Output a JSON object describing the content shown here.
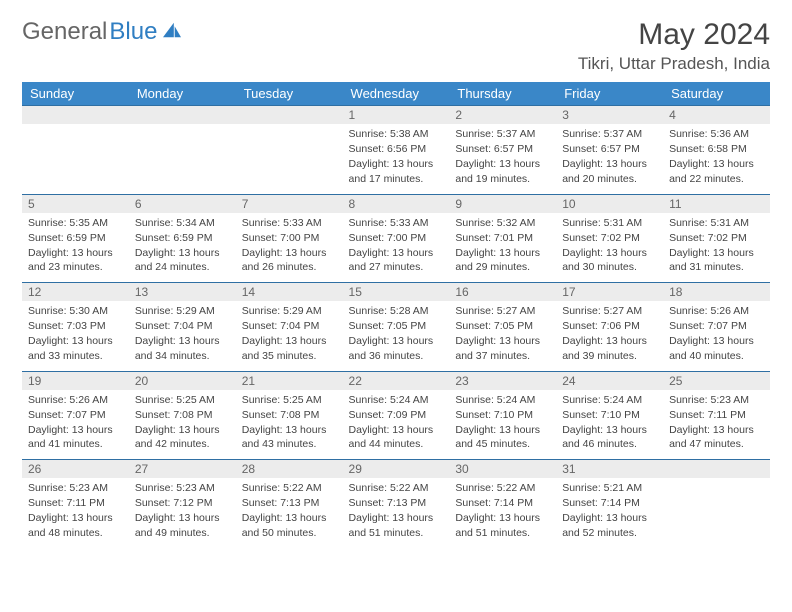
{
  "brand": {
    "gray": "General",
    "blue": "Blue"
  },
  "title": "May 2024",
  "location": "Tikri, Uttar Pradesh, India",
  "colors": {
    "header_bg": "#3a87c8",
    "header_text": "#ffffff",
    "daynum_bg": "#ececec",
    "border": "#2f6fa3",
    "text": "#444444"
  },
  "weekdays": [
    "Sunday",
    "Monday",
    "Tuesday",
    "Wednesday",
    "Thursday",
    "Friday",
    "Saturday"
  ],
  "weeks": [
    {
      "nums": [
        "",
        "",
        "",
        "1",
        "2",
        "3",
        "4"
      ],
      "cells": [
        null,
        null,
        null,
        {
          "sunrise": "5:38 AM",
          "sunset": "6:56 PM",
          "daylight": "13 hours and 17 minutes."
        },
        {
          "sunrise": "5:37 AM",
          "sunset": "6:57 PM",
          "daylight": "13 hours and 19 minutes."
        },
        {
          "sunrise": "5:37 AM",
          "sunset": "6:57 PM",
          "daylight": "13 hours and 20 minutes."
        },
        {
          "sunrise": "5:36 AM",
          "sunset": "6:58 PM",
          "daylight": "13 hours and 22 minutes."
        }
      ]
    },
    {
      "nums": [
        "5",
        "6",
        "7",
        "8",
        "9",
        "10",
        "11"
      ],
      "cells": [
        {
          "sunrise": "5:35 AM",
          "sunset": "6:59 PM",
          "daylight": "13 hours and 23 minutes."
        },
        {
          "sunrise": "5:34 AM",
          "sunset": "6:59 PM",
          "daylight": "13 hours and 24 minutes."
        },
        {
          "sunrise": "5:33 AM",
          "sunset": "7:00 PM",
          "daylight": "13 hours and 26 minutes."
        },
        {
          "sunrise": "5:33 AM",
          "sunset": "7:00 PM",
          "daylight": "13 hours and 27 minutes."
        },
        {
          "sunrise": "5:32 AM",
          "sunset": "7:01 PM",
          "daylight": "13 hours and 29 minutes."
        },
        {
          "sunrise": "5:31 AM",
          "sunset": "7:02 PM",
          "daylight": "13 hours and 30 minutes."
        },
        {
          "sunrise": "5:31 AM",
          "sunset": "7:02 PM",
          "daylight": "13 hours and 31 minutes."
        }
      ]
    },
    {
      "nums": [
        "12",
        "13",
        "14",
        "15",
        "16",
        "17",
        "18"
      ],
      "cells": [
        {
          "sunrise": "5:30 AM",
          "sunset": "7:03 PM",
          "daylight": "13 hours and 33 minutes."
        },
        {
          "sunrise": "5:29 AM",
          "sunset": "7:04 PM",
          "daylight": "13 hours and 34 minutes."
        },
        {
          "sunrise": "5:29 AM",
          "sunset": "7:04 PM",
          "daylight": "13 hours and 35 minutes."
        },
        {
          "sunrise": "5:28 AM",
          "sunset": "7:05 PM",
          "daylight": "13 hours and 36 minutes."
        },
        {
          "sunrise": "5:27 AM",
          "sunset": "7:05 PM",
          "daylight": "13 hours and 37 minutes."
        },
        {
          "sunrise": "5:27 AM",
          "sunset": "7:06 PM",
          "daylight": "13 hours and 39 minutes."
        },
        {
          "sunrise": "5:26 AM",
          "sunset": "7:07 PM",
          "daylight": "13 hours and 40 minutes."
        }
      ]
    },
    {
      "nums": [
        "19",
        "20",
        "21",
        "22",
        "23",
        "24",
        "25"
      ],
      "cells": [
        {
          "sunrise": "5:26 AM",
          "sunset": "7:07 PM",
          "daylight": "13 hours and 41 minutes."
        },
        {
          "sunrise": "5:25 AM",
          "sunset": "7:08 PM",
          "daylight": "13 hours and 42 minutes."
        },
        {
          "sunrise": "5:25 AM",
          "sunset": "7:08 PM",
          "daylight": "13 hours and 43 minutes."
        },
        {
          "sunrise": "5:24 AM",
          "sunset": "7:09 PM",
          "daylight": "13 hours and 44 minutes."
        },
        {
          "sunrise": "5:24 AM",
          "sunset": "7:10 PM",
          "daylight": "13 hours and 45 minutes."
        },
        {
          "sunrise": "5:24 AM",
          "sunset": "7:10 PM",
          "daylight": "13 hours and 46 minutes."
        },
        {
          "sunrise": "5:23 AM",
          "sunset": "7:11 PM",
          "daylight": "13 hours and 47 minutes."
        }
      ]
    },
    {
      "nums": [
        "26",
        "27",
        "28",
        "29",
        "30",
        "31",
        ""
      ],
      "cells": [
        {
          "sunrise": "5:23 AM",
          "sunset": "7:11 PM",
          "daylight": "13 hours and 48 minutes."
        },
        {
          "sunrise": "5:23 AM",
          "sunset": "7:12 PM",
          "daylight": "13 hours and 49 minutes."
        },
        {
          "sunrise": "5:22 AM",
          "sunset": "7:13 PM",
          "daylight": "13 hours and 50 minutes."
        },
        {
          "sunrise": "5:22 AM",
          "sunset": "7:13 PM",
          "daylight": "13 hours and 51 minutes."
        },
        {
          "sunrise": "5:22 AM",
          "sunset": "7:14 PM",
          "daylight": "13 hours and 51 minutes."
        },
        {
          "sunrise": "5:21 AM",
          "sunset": "7:14 PM",
          "daylight": "13 hours and 52 minutes."
        },
        null
      ]
    }
  ],
  "labels": {
    "sunrise": "Sunrise:",
    "sunset": "Sunset:",
    "daylight": "Daylight:"
  }
}
